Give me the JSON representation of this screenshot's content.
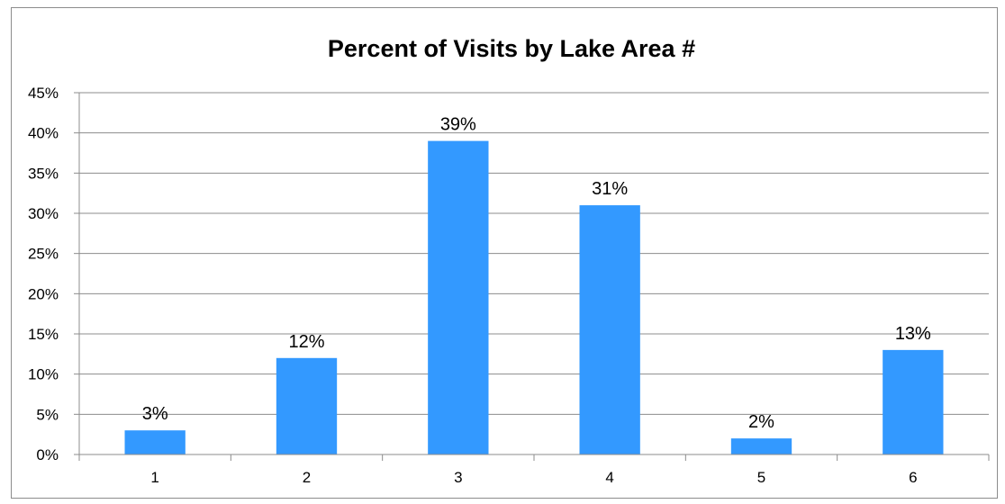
{
  "chart_data": {
    "type": "bar",
    "title": "Percent of Visits by Lake Area #",
    "categories": [
      "1",
      "2",
      "3",
      "4",
      "5",
      "6"
    ],
    "values": [
      3,
      12,
      39,
      31,
      2,
      13
    ],
    "data_labels": [
      "3%",
      "12%",
      "39%",
      "31%",
      "2%",
      "13%"
    ],
    "y_ticks": [
      "0%",
      "5%",
      "10%",
      "15%",
      "20%",
      "25%",
      "30%",
      "35%",
      "40%",
      "45%"
    ],
    "xlabel": "",
    "ylabel": "",
    "ylim": [
      0,
      45
    ],
    "grid": true,
    "legend": "none",
    "bar_color": "#3399FF"
  }
}
